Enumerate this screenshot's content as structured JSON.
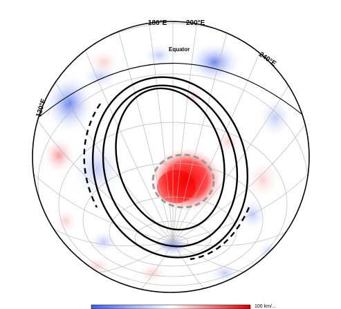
{
  "map": {
    "labels": {
      "lon_180": "180°E",
      "lon_200": "200°E",
      "lon_240": "240°E",
      "lon_120": "120°E",
      "equator": "Equator"
    },
    "colors": {
      "positive": "#ff1a1a",
      "negative": "#3a5ee8",
      "grid": "#b8b8b8",
      "outline": "#000000",
      "dashed_circle": "#9a9a9a"
    },
    "colorbar": {
      "gradient": [
        "#3a5ee8",
        "#ffffff",
        "#d00000"
      ],
      "label": "100 km/..."
    }
  }
}
